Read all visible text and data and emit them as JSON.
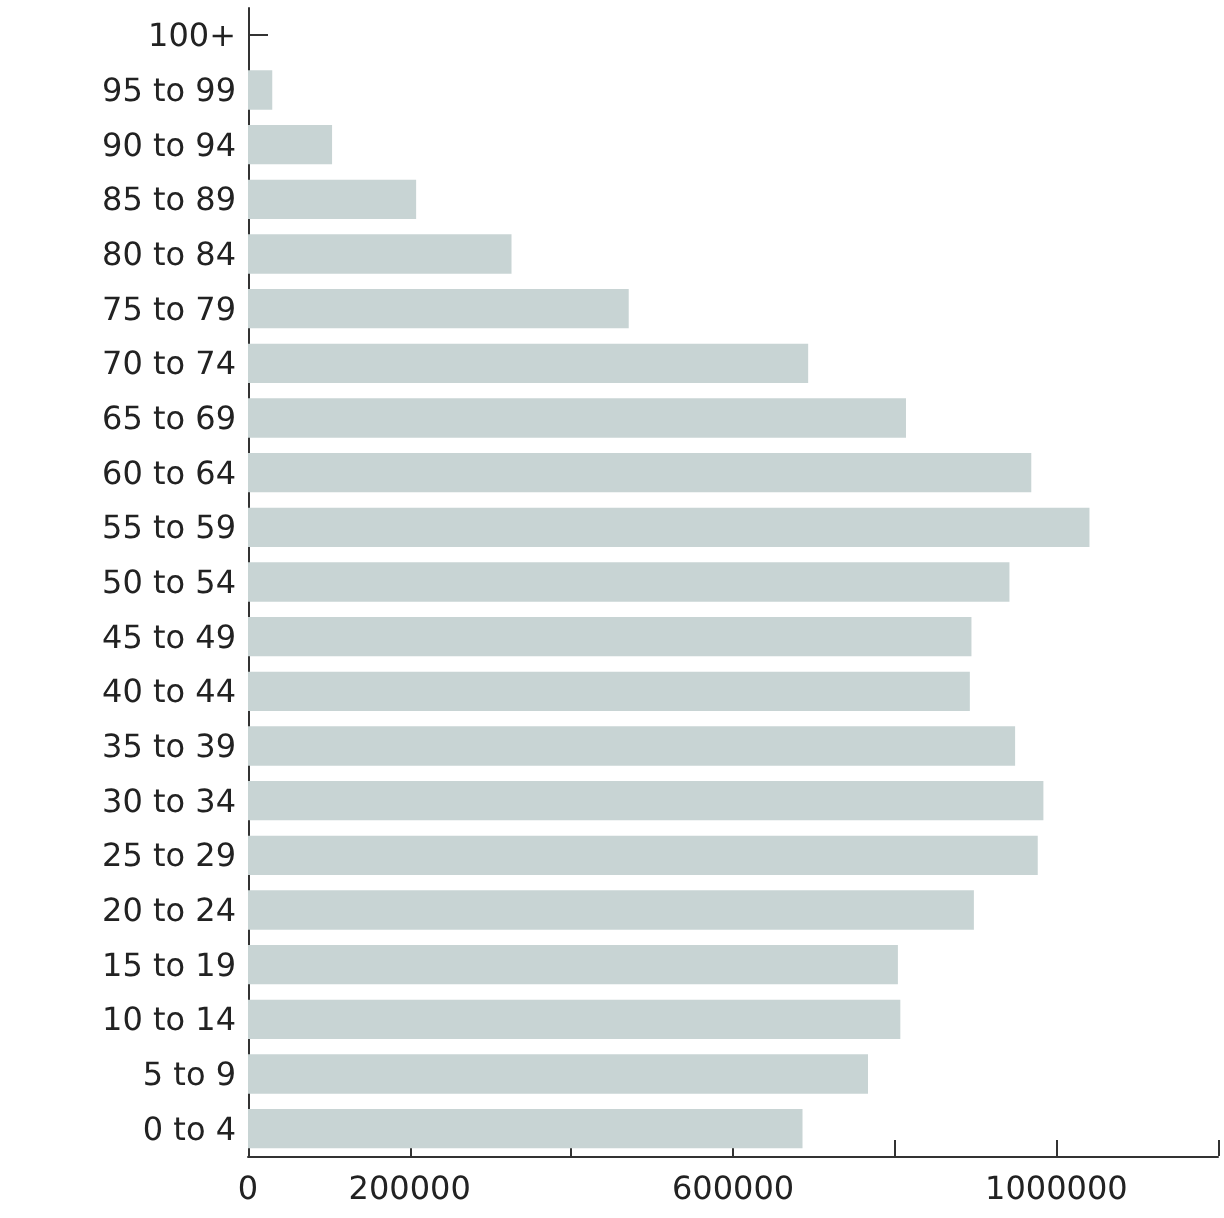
{
  "chart_data": {
    "type": "bar",
    "orientation": "horizontal",
    "categories": [
      "100+",
      "95 to 99",
      "90 to 94",
      "85 to 89",
      "80 to 84",
      "75 to 79",
      "70 to 74",
      "65 to 69",
      "60 to 64",
      "55 to 59",
      "50 to 54",
      "45 to 49",
      "40 to 44",
      "35 to 39",
      "30 to 34",
      "25 to 29",
      "20 to 24",
      "15 to 19",
      "10 to 14",
      "5 to 9",
      "0 to 4"
    ],
    "values": [
      null,
      30000,
      104000,
      208000,
      326000,
      471000,
      693000,
      814000,
      969000,
      1041000,
      942000,
      895000,
      893000,
      949000,
      984000,
      977000,
      898000,
      804000,
      807000,
      767000,
      686000
    ],
    "color": "#c8d4d4",
    "xlim": [
      0,
      1200000
    ],
    "xticks": [
      0,
      200000,
      {
        "value": 400000,
        "label": null
      },
      600000,
      {
        "value": 800000,
        "label": null
      },
      1000000,
      {
        "value": 1200000,
        "label": null
      }
    ],
    "grid": false
  }
}
